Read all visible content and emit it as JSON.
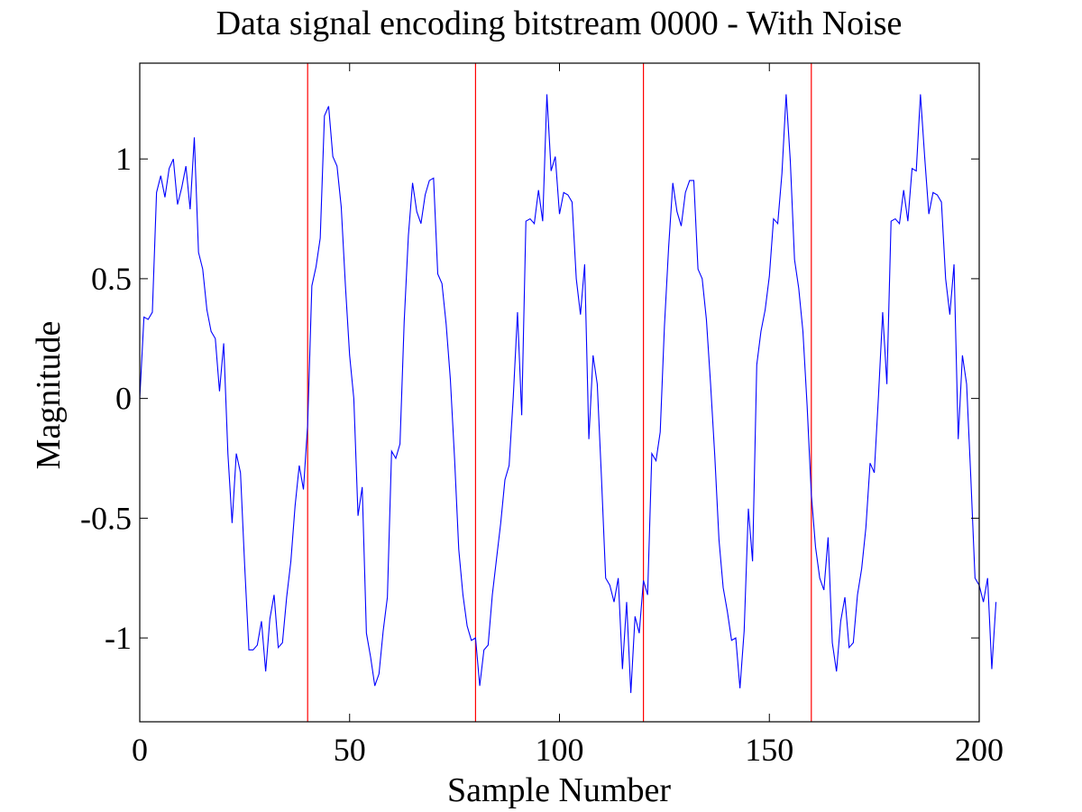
{
  "chart_data": {
    "type": "line",
    "title": "Data signal encoding bitstream 0000 - With Noise",
    "xlabel": "Sample Number",
    "ylabel": "Magnitude",
    "xlim": [
      0,
      200
    ],
    "ylim": [
      -1.35,
      1.4
    ],
    "x_ticks": [
      0,
      50,
      100,
      150,
      200
    ],
    "x_tick_labels": [
      "0",
      "50",
      "100",
      "150",
      "200"
    ],
    "y_ticks": [
      1,
      0.5,
      0,
      -0.5,
      -1
    ],
    "y_tick_labels": [
      "1",
      "0.5",
      "0",
      "-0.5",
      "-1"
    ],
    "grid": false,
    "legend": "none",
    "colors": {
      "signal": "#0000ff",
      "boundary": "#ff0000",
      "axes": "#000000"
    },
    "bit_boundaries": [
      40,
      80,
      120,
      160
    ],
    "series": [
      {
        "x_start": 0,
        "x_step": 1,
        "values": [
          0.0,
          0.34,
          0.33,
          0.36,
          0.86,
          0.93,
          0.84,
          0.96,
          1.0,
          0.81,
          0.88,
          0.97,
          0.79,
          1.09,
          0.61,
          0.54,
          0.37,
          0.28,
          0.25,
          0.03,
          0.23,
          -0.23,
          -0.52,
          -0.23,
          -0.31,
          -0.7,
          -1.05,
          -1.05,
          -1.03,
          -0.93,
          -1.14,
          -0.92,
          -0.82,
          -1.04,
          -1.02,
          -0.83,
          -0.68,
          -0.45,
          -0.28,
          -0.38,
          -0.11,
          0.47,
          0.55,
          0.67,
          1.18,
          1.22,
          1.01,
          0.97,
          0.8,
          0.47,
          0.18,
          0.0,
          -0.49,
          -0.37,
          -0.98,
          -1.08,
          -1.2,
          -1.15,
          -0.97,
          -0.83,
          -0.22,
          -0.25,
          -0.19,
          0.32,
          0.68,
          0.9,
          0.78,
          0.73,
          0.85,
          0.91,
          0.92,
          0.52,
          0.48,
          0.31,
          0.08,
          -0.25,
          -0.63,
          -0.82,
          -0.95,
          -1.01,
          -1.0,
          -1.2,
          -1.05,
          -1.03,
          -0.82,
          -0.67,
          -0.52,
          -0.34,
          -0.28,
          0.01,
          0.36,
          -0.07,
          0.74,
          0.75,
          0.73,
          0.87,
          0.74,
          1.27,
          0.95,
          1.01,
          0.77,
          0.86,
          0.85,
          0.82,
          0.5,
          0.35,
          0.56,
          -0.17,
          0.18,
          0.06,
          -0.33,
          -0.75,
          -0.78,
          -0.85,
          -0.75,
          -1.13,
          -0.85,
          -1.23,
          -0.91,
          -0.98,
          -0.76,
          -0.82,
          -0.23,
          -0.26,
          -0.14,
          0.3,
          0.63,
          0.9,
          0.78,
          0.72,
          0.86,
          0.91,
          0.91,
          0.54,
          0.5,
          0.33,
          0.06,
          -0.24,
          -0.59,
          -0.79,
          -0.89,
          -1.01,
          -1.0,
          -1.21,
          -0.97,
          -0.46,
          -0.68,
          0.14,
          0.28,
          0.37,
          0.51,
          0.75,
          0.73,
          0.94,
          1.27,
          0.99,
          0.58,
          0.46,
          0.28,
          -0.03,
          -0.4,
          -0.62,
          -0.75,
          -0.8,
          -0.58,
          -1.02,
          -1.14,
          -0.93,
          -0.83,
          -1.04,
          -1.02,
          -0.82,
          -0.71,
          -0.54,
          -0.27,
          -0.31,
          0.01,
          0.36,
          0.06,
          0.74,
          0.75,
          0.73,
          0.87,
          0.74,
          0.96,
          0.95,
          1.27,
          1.01,
          0.77,
          0.86,
          0.85,
          0.82,
          0.5,
          0.35,
          0.56,
          -0.17,
          0.18,
          0.06,
          -0.33,
          -0.75,
          -0.78,
          -0.85,
          -0.75,
          -1.13,
          -0.85
        ]
      }
    ]
  }
}
